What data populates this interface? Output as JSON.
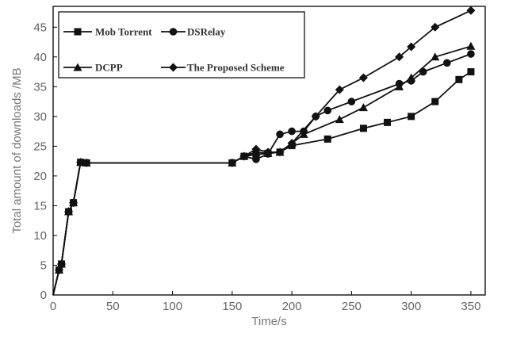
{
  "chart_data": {
    "type": "line",
    "xlabel": "Time/s",
    "ylabel": "Total amount of downloads /MB",
    "xlim": [
      0,
      362
    ],
    "ylim": [
      0,
      48.5
    ],
    "xticks": [
      0,
      50,
      100,
      150,
      200,
      250,
      300,
      350
    ],
    "yticks": [
      0,
      5,
      10,
      15,
      20,
      25,
      30,
      35,
      40,
      45
    ],
    "legend": "top-left, two columns",
    "series": [
      {
        "name": "Mob Torrent",
        "marker": "square",
        "x": [
          0,
          5,
          7,
          13,
          17,
          23,
          28,
          150,
          160,
          170,
          180,
          190,
          200,
          230,
          260,
          280,
          300,
          320,
          340,
          350
        ],
        "y": [
          0,
          4.2,
          5.2,
          14,
          15.5,
          22.3,
          22.2,
          22.2,
          23.3,
          23.6,
          23.8,
          24,
          25.1,
          26.2,
          28,
          29,
          30,
          32.5,
          36.2,
          37.5
        ]
      },
      {
        "name": "DSRelay",
        "marker": "circle",
        "x": [
          0,
          5,
          7,
          13,
          17,
          23,
          28,
          150,
          160,
          170,
          180,
          190,
          200,
          210,
          220,
          230,
          250,
          290,
          300,
          310,
          330,
          350
        ],
        "y": [
          0,
          4.2,
          5.2,
          14,
          15.5,
          22.3,
          22.2,
          22.2,
          23.3,
          22.8,
          23.7,
          27,
          27.5,
          27.5,
          30,
          31,
          32.5,
          35.5,
          36,
          37.5,
          39,
          40.5
        ]
      },
      {
        "name": "DCPP",
        "marker": "triangle",
        "x": [
          0,
          5,
          7,
          13,
          17,
          23,
          28,
          150,
          160,
          170,
          180,
          190,
          200,
          210,
          240,
          260,
          290,
          300,
          320,
          350
        ],
        "y": [
          0,
          4.2,
          5.2,
          14,
          15.5,
          22.3,
          22.2,
          22.2,
          23.3,
          24,
          23.8,
          24,
          25.5,
          27,
          29.5,
          31.5,
          35,
          36.5,
          40,
          41.8
        ]
      },
      {
        "name": "The Proposed Scheme",
        "marker": "diamond",
        "x": [
          0,
          5,
          7,
          13,
          17,
          23,
          28,
          150,
          160,
          170,
          180,
          190,
          200,
          220,
          240,
          260,
          290,
          300,
          320,
          350
        ],
        "y": [
          0,
          4.2,
          5.2,
          14,
          15.5,
          22.3,
          22.2,
          22.2,
          23.3,
          24.5,
          24,
          24,
          25.5,
          30,
          34.5,
          36.5,
          40,
          41.7,
          45,
          47.8
        ]
      }
    ]
  }
}
